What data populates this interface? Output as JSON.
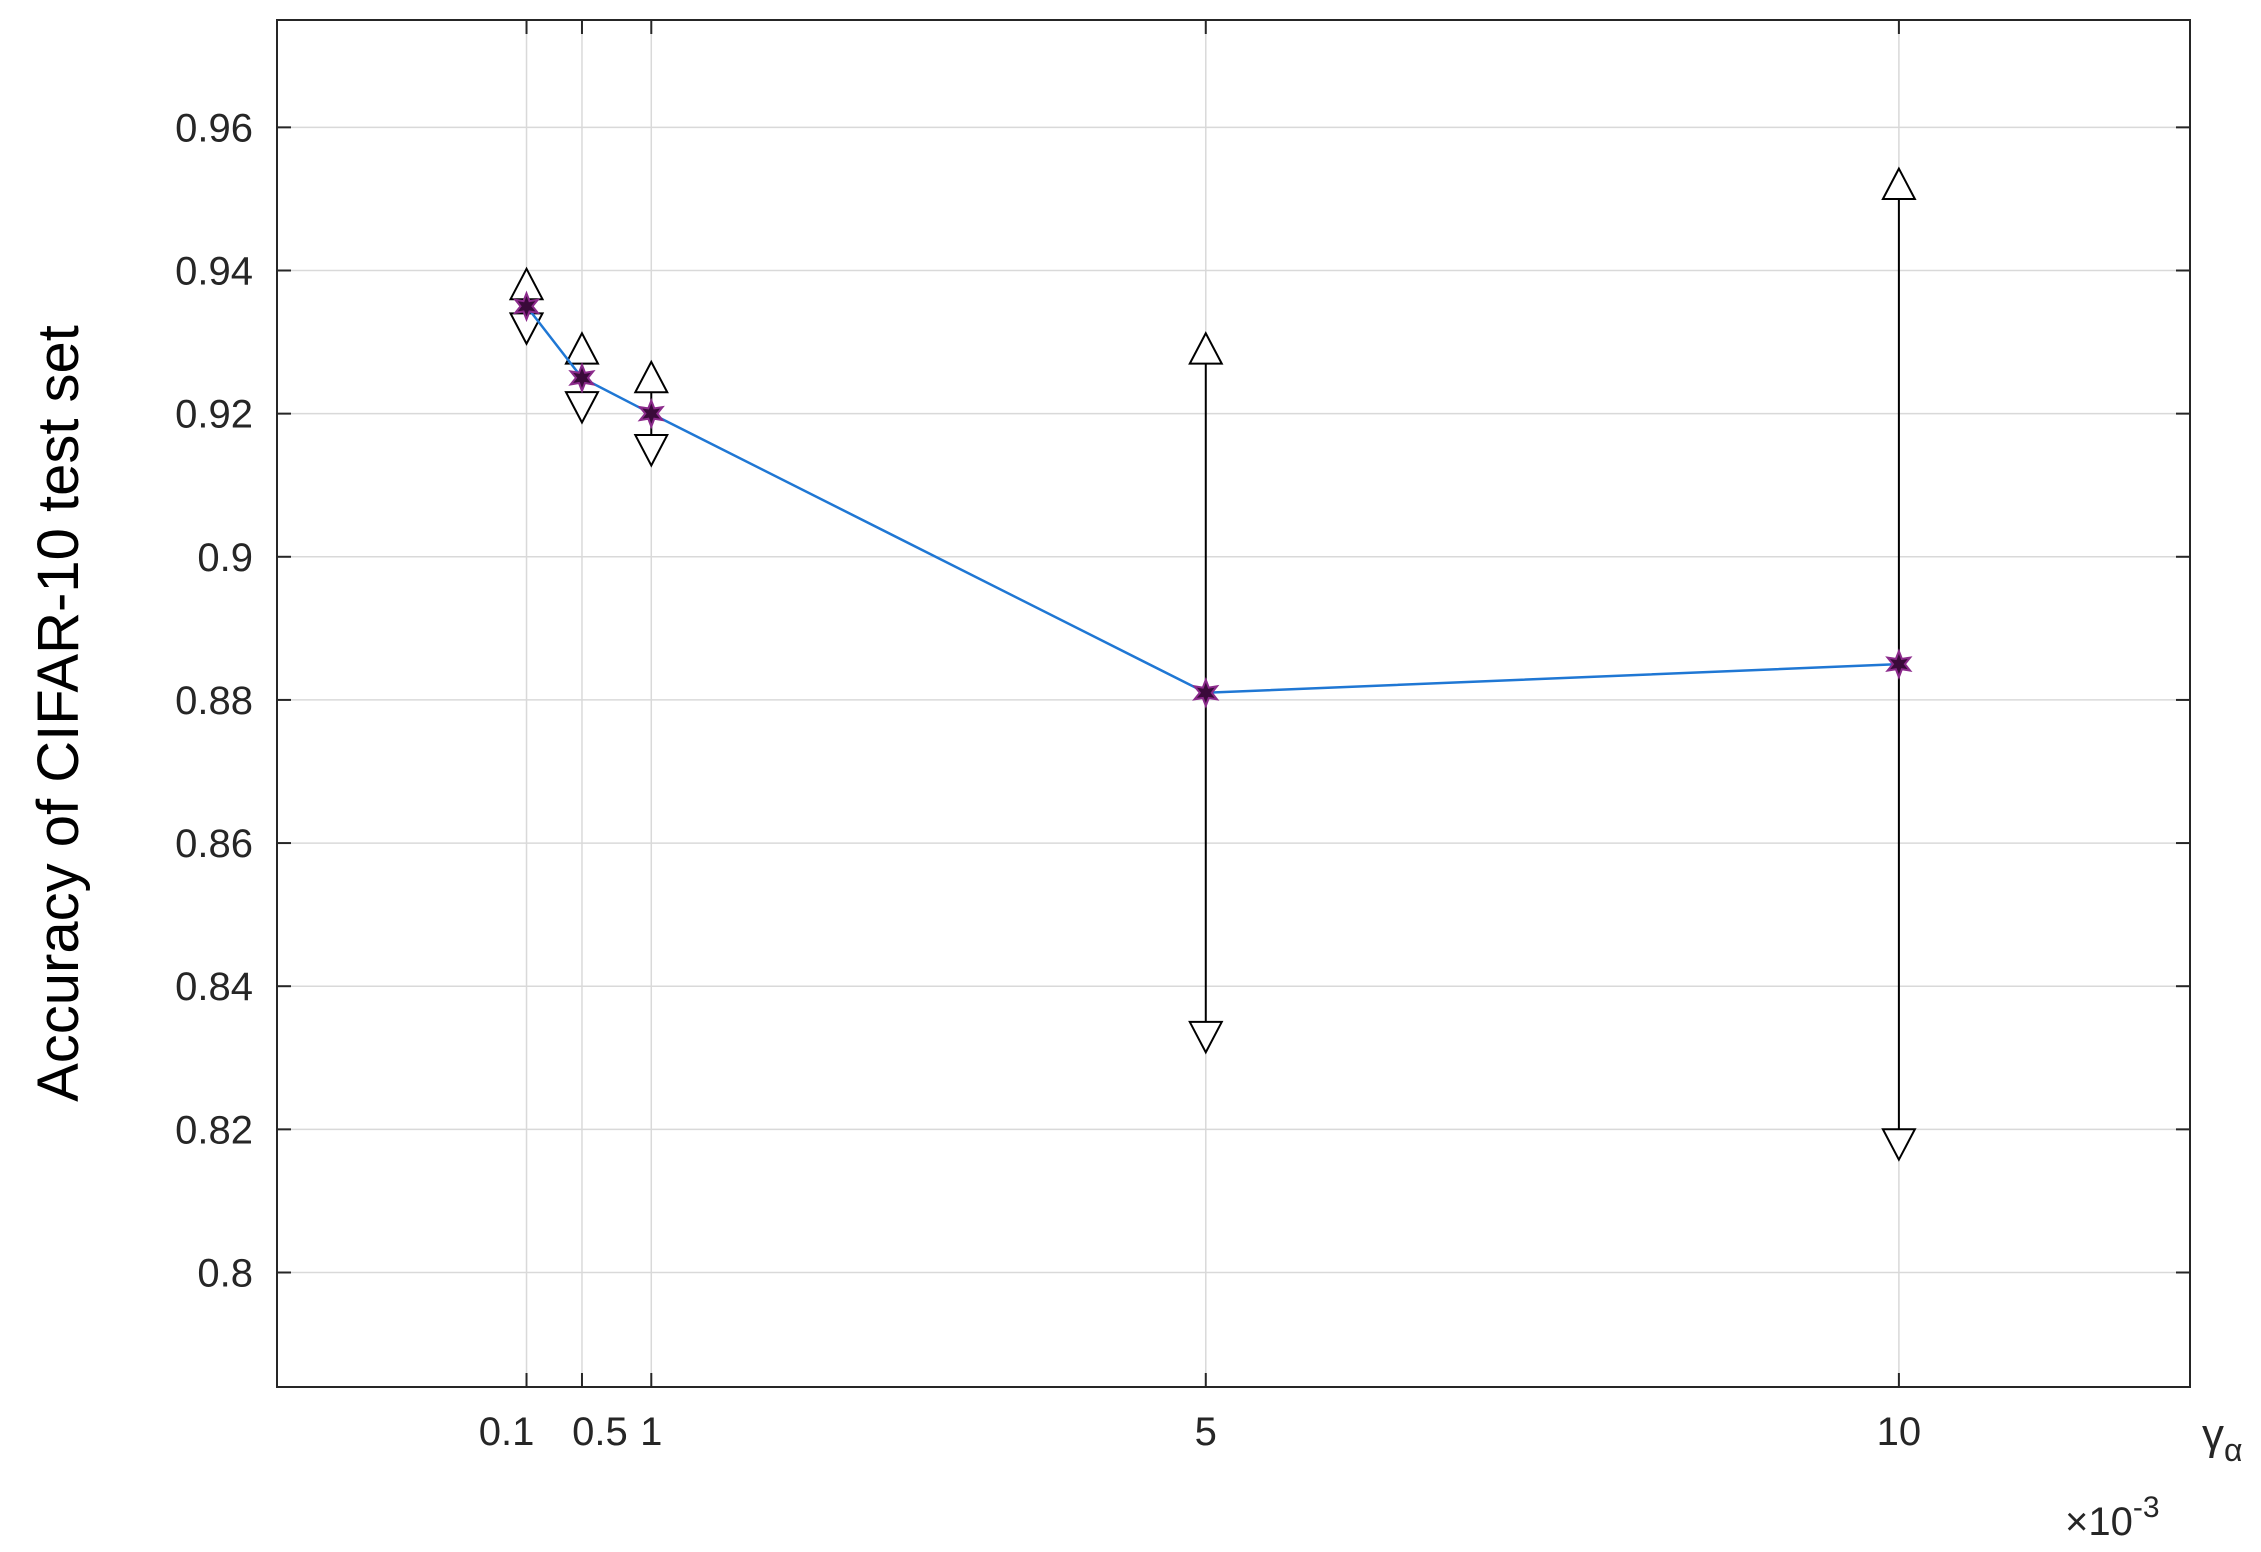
{
  "chart_data": {
    "type": "line",
    "title": "",
    "xlabel": "γ",
    "xlabel_subscript": "α",
    "ylabel": "Accuracy of CIFAR-10 test set",
    "x_scale_note": "×10",
    "x_scale_exponent": "-3",
    "xlim": [
      -1.7,
      12.1
    ],
    "ylim": [
      0.784,
      0.975
    ],
    "x_ticks": [
      0.1,
      0.5,
      1,
      5,
      10
    ],
    "x_tick_labels": [
      "0.1",
      "0.5",
      "1",
      "5",
      "10"
    ],
    "y_ticks": [
      0.8,
      0.82,
      0.84,
      0.86,
      0.88,
      0.9,
      0.92,
      0.94,
      0.96
    ],
    "y_tick_labels": [
      "0.8",
      "0.82",
      "0.84",
      "0.86",
      "0.88",
      "0.9",
      "0.92",
      "0.94",
      "0.96"
    ],
    "grid": true,
    "series": [
      {
        "x": [
          0.1,
          0.5,
          1,
          5,
          10
        ],
        "y": [
          0.935,
          0.925,
          0.92,
          0.881,
          0.885
        ],
        "upper": [
          0.938,
          0.929,
          0.925,
          0.929,
          0.952
        ],
        "lower": [
          0.932,
          0.921,
          0.915,
          0.833,
          0.818
        ]
      }
    ],
    "colors": {
      "line": "#1f77d4",
      "marker": "#3a0a3a",
      "marker_edge": "#8b2a8b",
      "errorbar": "#000000",
      "grid": "#d9d9d9",
      "axes": "#262626"
    }
  }
}
